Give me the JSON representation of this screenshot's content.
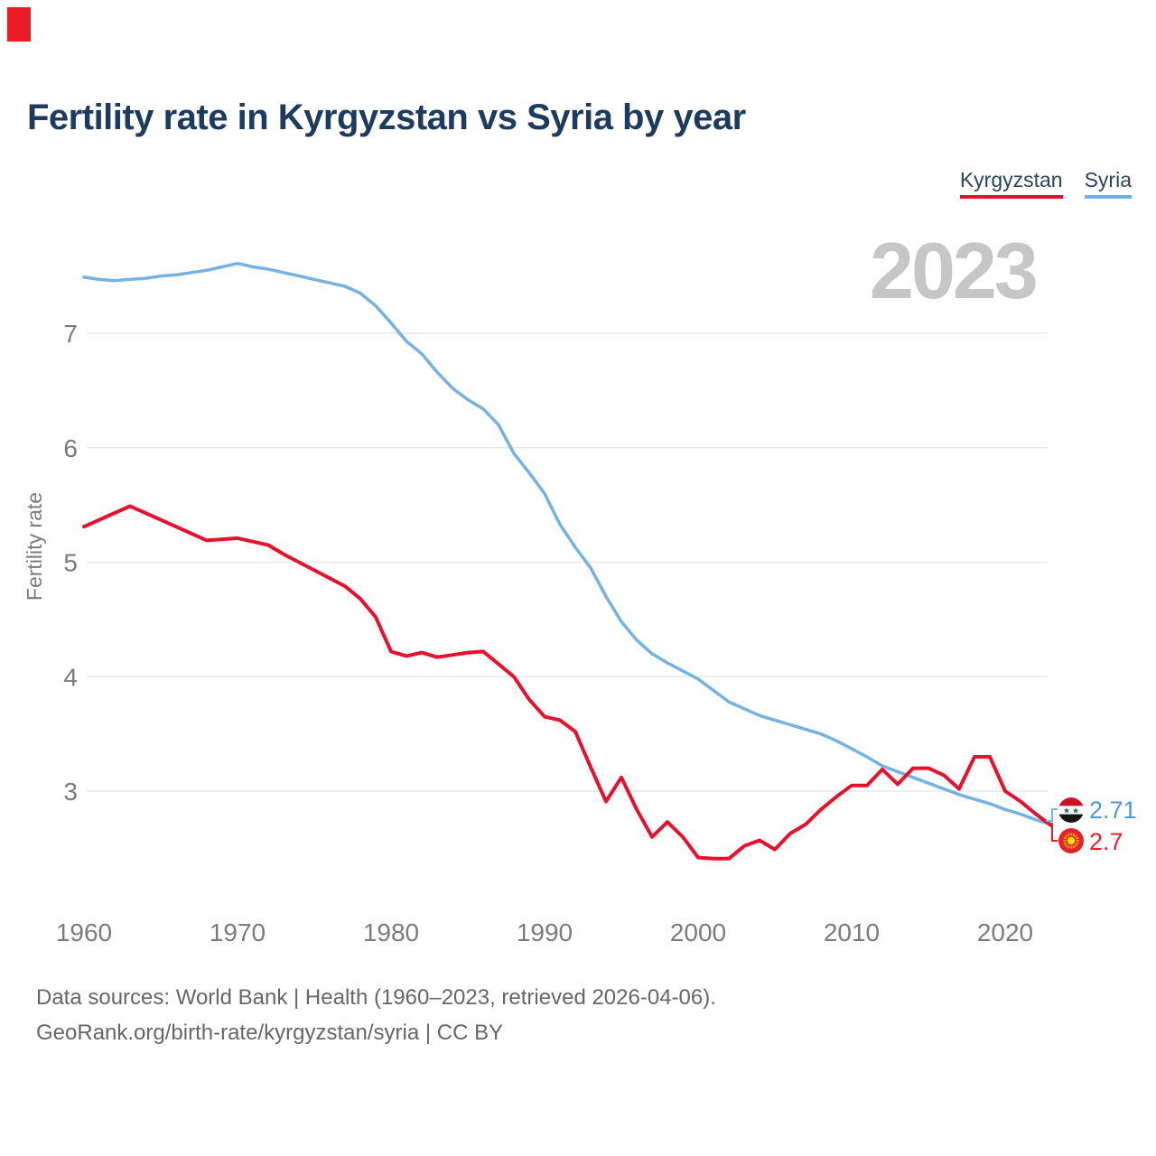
{
  "page": {
    "marker_color": "#ea1c25",
    "background": "#ffffff"
  },
  "header": {
    "title": "Fertility rate in Kyrgyzstan vs Syria by year"
  },
  "legend": {
    "items": [
      {
        "label": "Kyrgyzstan",
        "color": "#e8112d"
      },
      {
        "label": "Syria",
        "color": "#6fb0e8"
      }
    ]
  },
  "watermark": "2023",
  "chart_data": {
    "type": "line",
    "title": "Fertility rate in Kyrgyzstan vs Syria by year",
    "xlabel": "",
    "ylabel": "Fertility rate",
    "x_ticks": [
      1960,
      1970,
      1980,
      1990,
      2000,
      2010,
      2020
    ],
    "y_ticks": [
      3,
      4,
      5,
      6,
      7
    ],
    "ylim": [
      2.2,
      7.8
    ],
    "grid": "horizontal",
    "legend_position": "top-right",
    "x": [
      1960,
      1961,
      1962,
      1963,
      1964,
      1965,
      1966,
      1967,
      1968,
      1969,
      1970,
      1971,
      1972,
      1973,
      1974,
      1975,
      1976,
      1977,
      1978,
      1979,
      1980,
      1981,
      1982,
      1983,
      1984,
      1985,
      1986,
      1987,
      1988,
      1989,
      1990,
      1991,
      1992,
      1993,
      1994,
      1995,
      1996,
      1997,
      1998,
      1999,
      2000,
      2001,
      2002,
      2003,
      2004,
      2005,
      2006,
      2007,
      2008,
      2009,
      2010,
      2011,
      2012,
      2013,
      2014,
      2015,
      2016,
      2017,
      2018,
      2019,
      2020,
      2021,
      2022,
      2023
    ],
    "series": [
      {
        "name": "Kyrgyzstan",
        "color": "#e8112d",
        "label_color": "#e8202d",
        "end_label": "2.7",
        "values": [
          5.31,
          5.37,
          5.43,
          5.49,
          5.43,
          5.37,
          5.31,
          5.25,
          5.19,
          5.2,
          5.21,
          5.18,
          5.15,
          5.07,
          5.0,
          4.93,
          4.86,
          4.79,
          4.68,
          4.52,
          4.22,
          4.18,
          4.21,
          4.17,
          4.19,
          4.21,
          4.22,
          4.11,
          4.0,
          3.8,
          3.65,
          3.62,
          3.52,
          3.21,
          2.91,
          3.12,
          2.84,
          2.6,
          2.73,
          2.6,
          2.42,
          2.41,
          2.41,
          2.52,
          2.57,
          2.49,
          2.63,
          2.71,
          2.84,
          2.95,
          3.05,
          3.05,
          3.19,
          3.06,
          3.2,
          3.2,
          3.14,
          3.02,
          3.3,
          3.3,
          3.0,
          2.91,
          2.8,
          2.7
        ]
      },
      {
        "name": "Syria",
        "color": "#74b2e2",
        "label_color": "#4f97d8",
        "end_label": "2.71",
        "values": [
          7.49,
          7.47,
          7.46,
          7.47,
          7.48,
          7.5,
          7.51,
          7.53,
          7.55,
          7.58,
          7.61,
          7.58,
          7.56,
          7.53,
          7.5,
          7.47,
          7.44,
          7.41,
          7.35,
          7.24,
          7.09,
          6.93,
          6.82,
          6.66,
          6.52,
          6.42,
          6.34,
          6.2,
          5.95,
          5.78,
          5.6,
          5.33,
          5.13,
          4.95,
          4.7,
          4.48,
          4.32,
          4.2,
          4.12,
          4.05,
          3.98,
          3.88,
          3.78,
          3.72,
          3.66,
          3.62,
          3.58,
          3.54,
          3.5,
          3.44,
          3.37,
          3.3,
          3.22,
          3.17,
          3.12,
          3.07,
          3.02,
          2.97,
          2.93,
          2.89,
          2.84,
          2.8,
          2.75,
          2.71
        ]
      }
    ]
  },
  "footer": {
    "line1": "Data sources: World Bank | Health (1960–2023, retrieved 2026-04-06).",
    "line2": "GeoRank.org/birth-rate/kyrgyzstan/syria | CC BY"
  }
}
